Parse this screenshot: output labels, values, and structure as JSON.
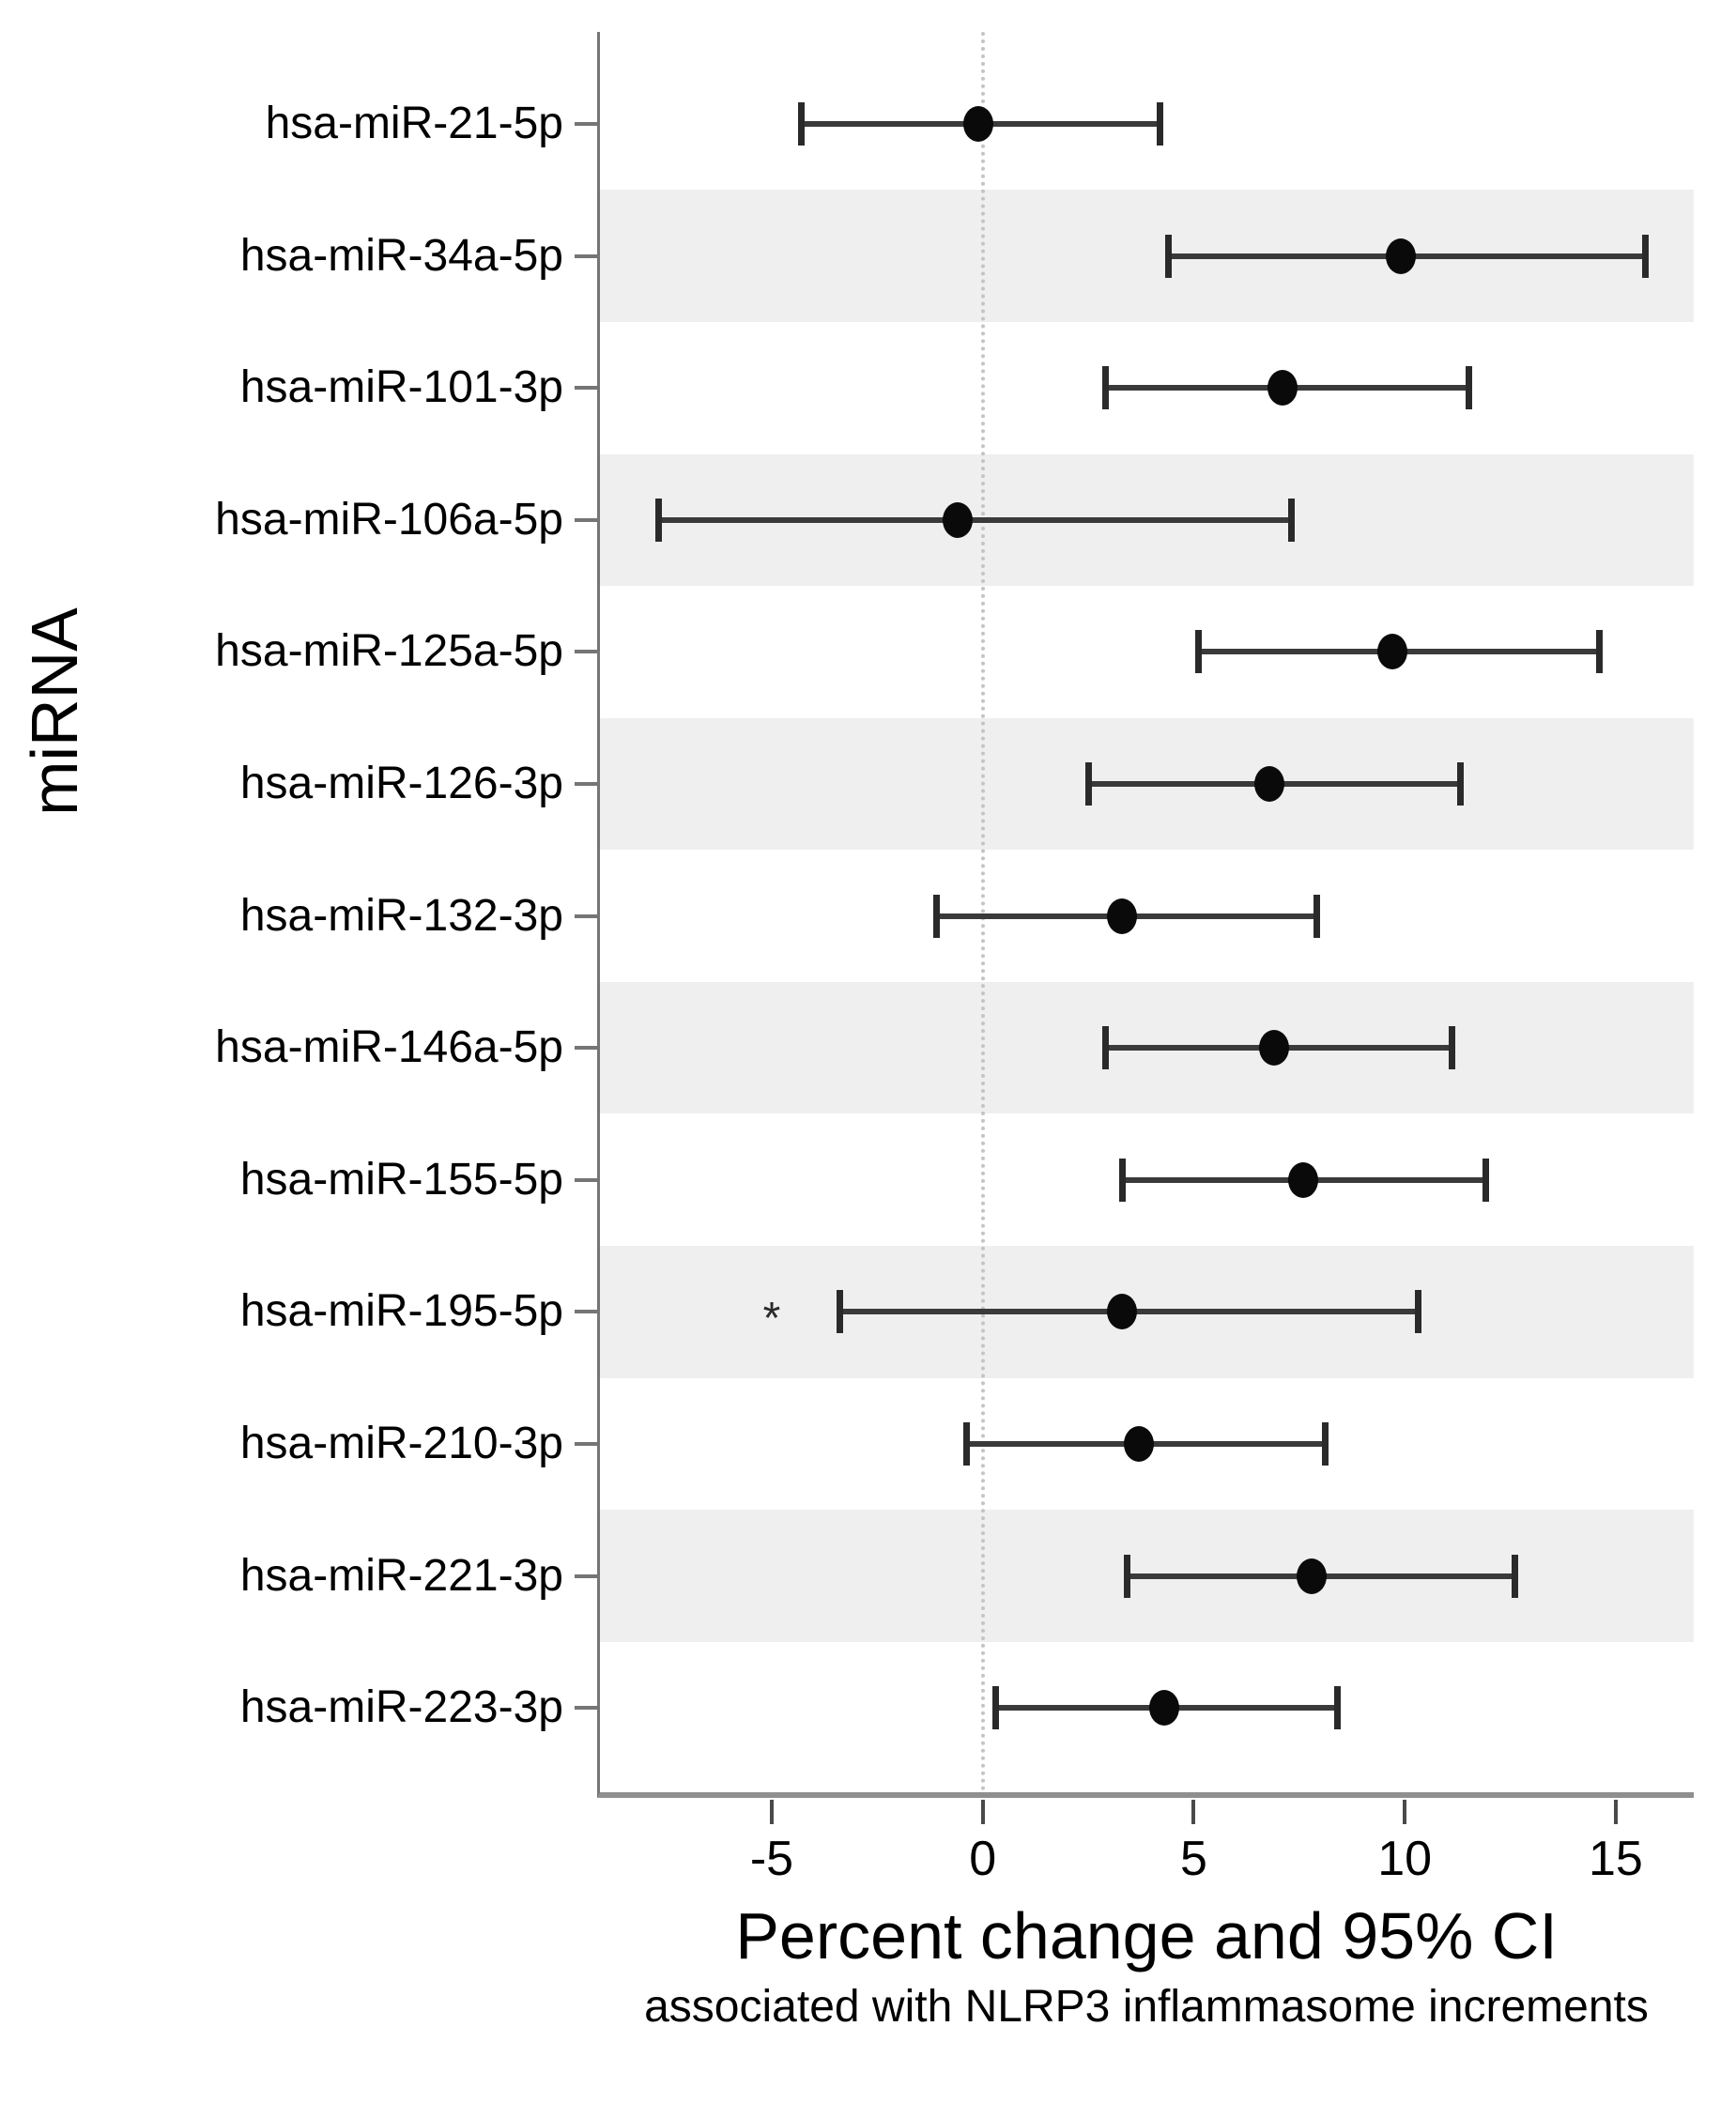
{
  "colors": {
    "page_bg": "#ffffff",
    "text": "#000000",
    "band": "#efefef",
    "ref_line": "#c4c4c4",
    "ci_line": "#3a3a3a",
    "ci_cap": "#2a2a2a",
    "marker": "#0a0a0a",
    "y_axis_line": "#757575",
    "x_axis_line": "#8f8f8f",
    "tick": "#4a4a4a"
  },
  "chart_data": {
    "type": "scatter",
    "subtype": "forest-plot-with-95ci-error-bars",
    "title": "Percent change and 95% CI",
    "subtitle": "associated with NLRP3 inflammasome increments",
    "ylabel": "miRNA",
    "xlabel": "Percent change and 95% CI",
    "x_ticks": [
      -5,
      0,
      5,
      10,
      15
    ],
    "xlim": [
      -9.1,
      16.9
    ],
    "reference_line_x": 0,
    "grid": false,
    "legend": false,
    "shading": "alternating row bands on even rows",
    "rows": [
      {
        "label": "hsa-miR-21-5p",
        "estimate": -0.1,
        "ci_low": -4.3,
        "ci_high": 4.2,
        "shaded": false,
        "annotation": null,
        "annotation_x": null
      },
      {
        "label": "hsa-miR-34a-5p",
        "estimate": 9.9,
        "ci_low": 4.4,
        "ci_high": 15.7,
        "shaded": true,
        "annotation": null,
        "annotation_x": null
      },
      {
        "label": "hsa-miR-101-3p",
        "estimate": 7.1,
        "ci_low": 2.9,
        "ci_high": 11.5,
        "shaded": false,
        "annotation": null,
        "annotation_x": null
      },
      {
        "label": "hsa-miR-106a-5p",
        "estimate": -0.6,
        "ci_low": -7.7,
        "ci_high": 7.3,
        "shaded": true,
        "annotation": null,
        "annotation_x": null
      },
      {
        "label": "hsa-miR-125a-5p",
        "estimate": 9.7,
        "ci_low": 5.1,
        "ci_high": 14.6,
        "shaded": false,
        "annotation": null,
        "annotation_x": null
      },
      {
        "label": "hsa-miR-126-3p",
        "estimate": 6.8,
        "ci_low": 2.5,
        "ci_high": 11.3,
        "shaded": true,
        "annotation": null,
        "annotation_x": null
      },
      {
        "label": "hsa-miR-132-3p",
        "estimate": 3.3,
        "ci_low": -1.1,
        "ci_high": 7.9,
        "shaded": false,
        "annotation": null,
        "annotation_x": null
      },
      {
        "label": "hsa-miR-146a-5p",
        "estimate": 6.9,
        "ci_low": 2.9,
        "ci_high": 11.1,
        "shaded": true,
        "annotation": null,
        "annotation_x": null
      },
      {
        "label": "hsa-miR-155-5p",
        "estimate": 7.6,
        "ci_low": 3.3,
        "ci_high": 11.9,
        "shaded": false,
        "annotation": null,
        "annotation_x": null
      },
      {
        "label": "hsa-miR-195-5p",
        "estimate": 3.3,
        "ci_low": -3.4,
        "ci_high": 10.3,
        "shaded": true,
        "annotation": "*",
        "annotation_x": -5.0
      },
      {
        "label": "hsa-miR-210-3p",
        "estimate": 3.7,
        "ci_low": -0.4,
        "ci_high": 8.1,
        "shaded": false,
        "annotation": null,
        "annotation_x": null
      },
      {
        "label": "hsa-miR-221-3p",
        "estimate": 7.8,
        "ci_low": 3.4,
        "ci_high": 12.6,
        "shaded": true,
        "annotation": null,
        "annotation_x": null
      },
      {
        "label": "hsa-miR-223-3p",
        "estimate": 4.3,
        "ci_low": 0.3,
        "ci_high": 8.4,
        "shaded": false,
        "annotation": null,
        "annotation_x": null
      }
    ]
  }
}
